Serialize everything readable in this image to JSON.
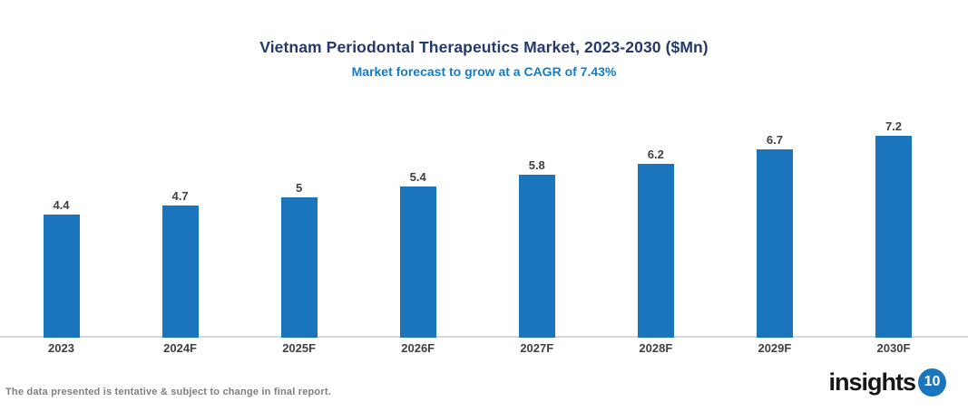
{
  "header": {
    "title": "Vietnam Periodontal Therapeutics Market, 2023-2030 ($Mn)",
    "subtitle": "Market forecast to grow at a CAGR of 7.43%"
  },
  "chart_data": {
    "type": "bar",
    "categories": [
      "2023",
      "2024F",
      "2025F",
      "2026F",
      "2027F",
      "2028F",
      "2029F",
      "2030F"
    ],
    "values": [
      4.4,
      4.7,
      5,
      5.4,
      5.8,
      6.2,
      6.7,
      7.2
    ],
    "title": "Vietnam Periodontal Therapeutics Market, 2023-2030 ($Mn)",
    "subtitle": "Market forecast to grow at a CAGR of 7.43%",
    "xlabel": "",
    "ylabel": "",
    "ylim": [
      0,
      8
    ],
    "grid": false,
    "legend": false,
    "data_labels": true,
    "bar_color": "#1B75BC"
  },
  "footer": {
    "disclaimer": "The data presented is tentative & subject to change in final report.",
    "logo": {
      "text": "insights",
      "badge": "10"
    }
  },
  "colors": {
    "title": "#243A6D",
    "subtitle": "#0F7DCD",
    "bar": "#1B75BC",
    "labels": "#404040",
    "axis_line": "#D8D8D8",
    "disclaimer": "#7F7F7F",
    "logo_text": "#161616",
    "logo_badge_bg": "#1B75BC",
    "logo_badge_text": "#FFFFFF"
  }
}
